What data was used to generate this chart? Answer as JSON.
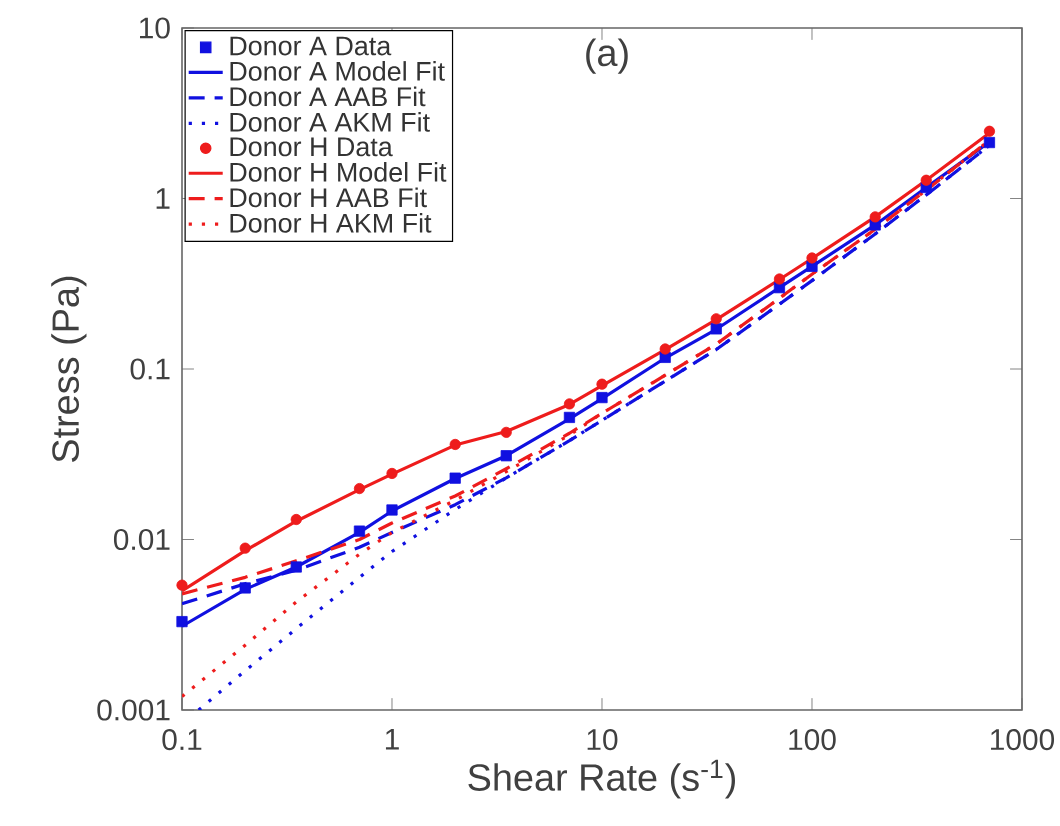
{
  "chart_data": {
    "type": "line",
    "xlabel": "Shear Rate (s$^{-1}$)",
    "ylabel": "Stress (Pa)",
    "annotations": [
      "(a)"
    ],
    "log": "xy",
    "xlim": [
      0.1,
      1000
    ],
    "ylim": [
      0.001,
      10
    ],
    "xticks": [
      0.1,
      1,
      10,
      100,
      1000
    ],
    "yticks": [
      0.001,
      0.01,
      0.1,
      1,
      10
    ],
    "legend": "top left",
    "series": [
      {
        "name": "Donor A Data",
        "type": "scatter",
        "marker": "square",
        "color": "#1010e0",
        "x": [
          0.1,
          0.2,
          0.35,
          0.7,
          1,
          2,
          3.5,
          7,
          10,
          20,
          35,
          70,
          100,
          200,
          350,
          700
        ],
        "values": [
          0.0033,
          0.0052,
          0.0069,
          0.0112,
          0.0149,
          0.0229,
          0.031,
          0.052,
          0.068,
          0.117,
          0.172,
          0.3,
          0.4,
          0.7,
          1.16,
          2.13
        ]
      },
      {
        "name": "Donor A Model Fit",
        "line_style": "solid",
        "color": "#1010e0",
        "x": [
          0.1,
          0.2,
          0.35,
          0.7,
          1,
          2,
          3.5,
          7,
          10,
          20,
          35,
          70,
          100,
          200,
          350,
          700
        ],
        "values": [
          0.0031,
          0.0051,
          0.0069,
          0.011,
          0.0147,
          0.0228,
          0.031,
          0.051,
          0.067,
          0.116,
          0.171,
          0.3,
          0.4,
          0.7,
          1.16,
          2.15
        ]
      },
      {
        "name": "Donor A AAB Fit",
        "line_style": "dashed",
        "color": "#1010e0",
        "x": [
          0.1,
          0.2,
          0.35,
          0.7,
          1,
          2,
          3.5,
          7,
          10,
          20,
          35,
          70,
          100,
          200,
          350,
          700
        ],
        "values": [
          0.0042,
          0.0055,
          0.0066,
          0.009,
          0.011,
          0.016,
          0.023,
          0.038,
          0.05,
          0.085,
          0.13,
          0.24,
          0.33,
          0.62,
          1.05,
          2.05
        ]
      },
      {
        "name": "Donor A AKM Fit",
        "line_style": "dotted",
        "color": "#1010e0",
        "x": [
          0.12,
          0.2,
          0.35,
          0.7,
          1,
          2,
          3.5,
          7,
          10,
          20,
          35,
          70,
          100,
          200,
          350,
          700
        ],
        "values": [
          0.001,
          0.0017,
          0.003,
          0.006,
          0.0085,
          0.015,
          0.023,
          0.038,
          0.05,
          0.085,
          0.13,
          0.24,
          0.33,
          0.62,
          1.05,
          2.05
        ]
      },
      {
        "name": "Donor H Data",
        "type": "scatter",
        "marker": "circle",
        "color": "#ee1c1c",
        "x": [
          0.1,
          0.2,
          0.35,
          0.7,
          1,
          2,
          3.5,
          7,
          10,
          20,
          35,
          70,
          100,
          200,
          350,
          700
        ],
        "values": [
          0.0054,
          0.0089,
          0.0131,
          0.0199,
          0.0244,
          0.0361,
          0.0425,
          0.0624,
          0.0815,
          0.131,
          0.197,
          0.337,
          0.448,
          0.78,
          1.28,
          2.48
        ]
      },
      {
        "name": "Donor H Model Fit",
        "line_style": "solid",
        "color": "#ee1c1c",
        "x": [
          0.1,
          0.2,
          0.35,
          0.7,
          1,
          2,
          3.5,
          7,
          10,
          20,
          35,
          70,
          100,
          200,
          350,
          700
        ],
        "values": [
          0.005,
          0.0086,
          0.0128,
          0.0196,
          0.0242,
          0.0358,
          0.043,
          0.062,
          0.08,
          0.13,
          0.195,
          0.335,
          0.445,
          0.78,
          1.28,
          2.42
        ]
      },
      {
        "name": "Donor H AAB Fit",
        "line_style": "dashed",
        "color": "#ee1c1c",
        "x": [
          0.1,
          0.2,
          0.35,
          0.7,
          1,
          2,
          3.5,
          7,
          10,
          20,
          35,
          70,
          100,
          200,
          350,
          700
        ],
        "values": [
          0.0048,
          0.006,
          0.0075,
          0.01,
          0.0125,
          0.018,
          0.026,
          0.042,
          0.055,
          0.092,
          0.14,
          0.26,
          0.36,
          0.66,
          1.12,
          2.2
        ]
      },
      {
        "name": "Donor H AKM Fit",
        "line_style": "dotted",
        "color": "#ee1c1c",
        "x": [
          0.1,
          0.2,
          0.35,
          0.7,
          1,
          2,
          3.5,
          7,
          10,
          20,
          35,
          70,
          100,
          200,
          350,
          700
        ],
        "values": [
          0.0012,
          0.0024,
          0.0043,
          0.0082,
          0.011,
          0.017,
          0.025,
          0.041,
          0.055,
          0.092,
          0.14,
          0.26,
          0.36,
          0.66,
          1.12,
          2.2
        ]
      }
    ]
  }
}
